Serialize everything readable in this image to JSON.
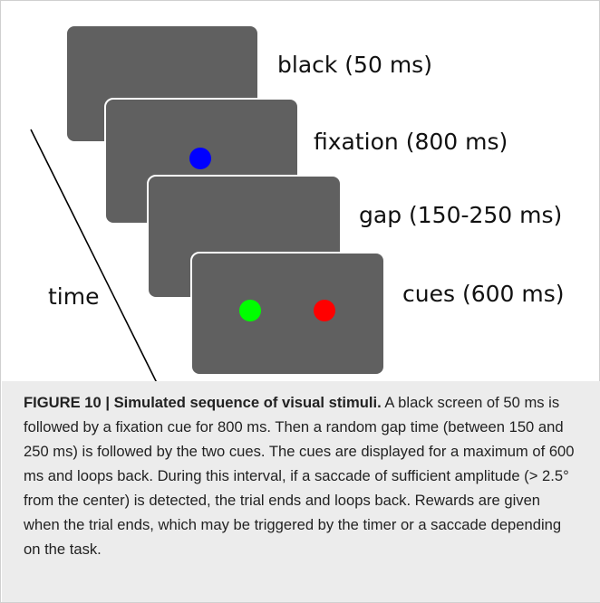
{
  "figure": {
    "stages": [
      {
        "label": "black (50 ms)"
      },
      {
        "label": "fixation (800 ms)"
      },
      {
        "label": "gap (150-250 ms)"
      },
      {
        "label": "cues (600 ms)"
      }
    ],
    "axis_label": "time"
  },
  "caption": {
    "label": "FIGURE 10 | Simulated sequence of visual stimuli.",
    "text": "A black screen of 50 ms is followed by a fixation cue for 800 ms. Then a random gap time (between 150 and 250 ms) is followed by the two cues. The cues are displayed for a maximum of 600 ms and loops back. During this interval, if a saccade of sufficient amplitude (> 2.5° from the center) is detected, the trial ends and loops back. Rewards are given when the trial ends, which may be triggered by the timer or a saccade depending on the task."
  }
}
